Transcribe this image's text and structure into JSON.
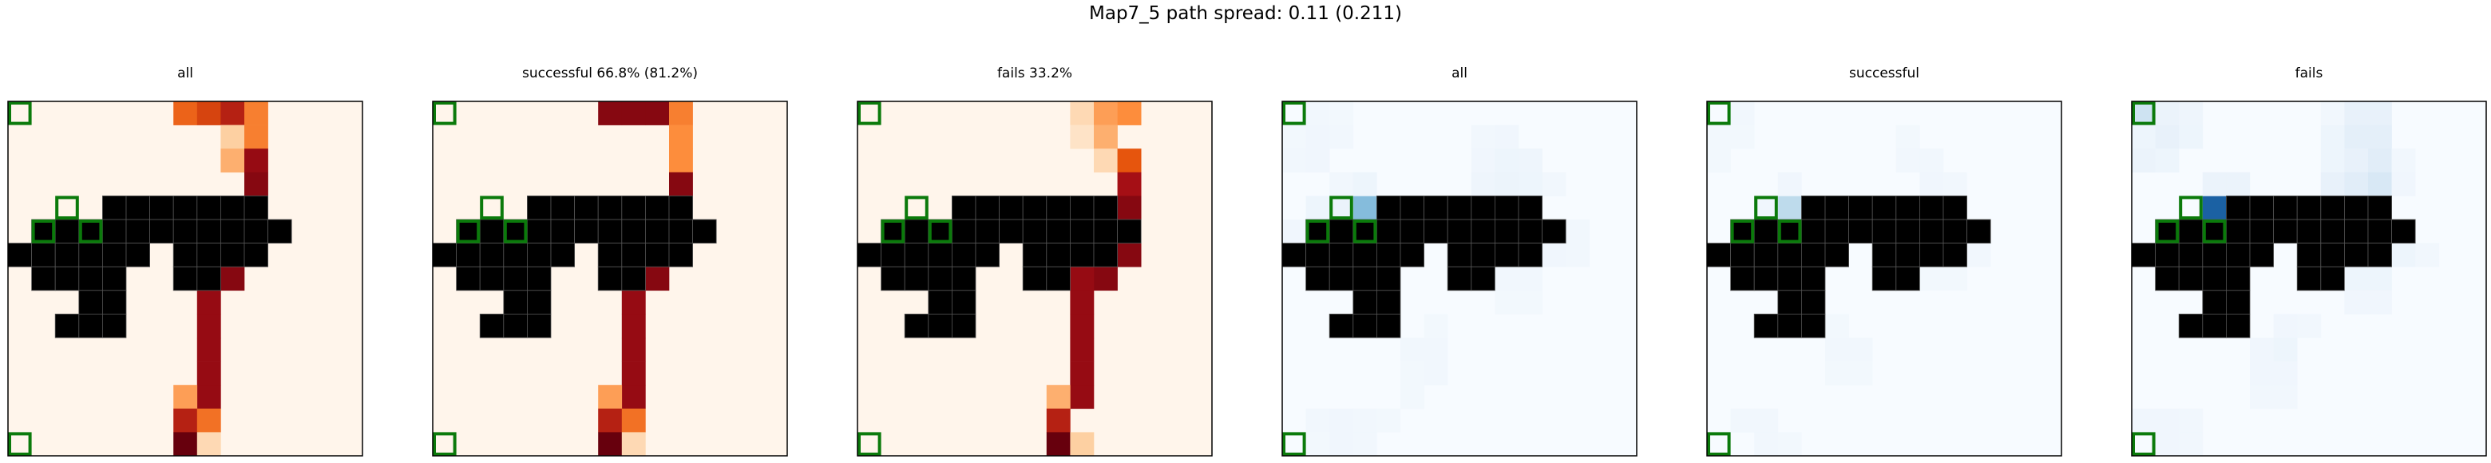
{
  "suptitle": "Map7_5 path spread: 0.11 (0.211)",
  "chart_data": {
    "type": "heatmap",
    "grid_size": [
      15,
      15
    ],
    "obstacles": [
      [
        4,
        4
      ],
      [
        4,
        5
      ],
      [
        4,
        6
      ],
      [
        4,
        7
      ],
      [
        4,
        8
      ],
      [
        4,
        9
      ],
      [
        4,
        10
      ],
      [
        5,
        1
      ],
      [
        5,
        2
      ],
      [
        5,
        3
      ],
      [
        5,
        4
      ],
      [
        5,
        5
      ],
      [
        5,
        6
      ],
      [
        5,
        7
      ],
      [
        5,
        8
      ],
      [
        5,
        9
      ],
      [
        5,
        10
      ],
      [
        5,
        11
      ],
      [
        6,
        0
      ],
      [
        6,
        1
      ],
      [
        6,
        2
      ],
      [
        6,
        3
      ],
      [
        6,
        4
      ],
      [
        6,
        5
      ],
      [
        6,
        7
      ],
      [
        6,
        8
      ],
      [
        6,
        9
      ],
      [
        6,
        10
      ],
      [
        7,
        1
      ],
      [
        7,
        2
      ],
      [
        7,
        3
      ],
      [
        7,
        4
      ],
      [
        7,
        7
      ],
      [
        7,
        8
      ],
      [
        8,
        3
      ],
      [
        8,
        4
      ],
      [
        9,
        2
      ],
      [
        9,
        3
      ],
      [
        9,
        4
      ]
    ],
    "start_markers": [
      [
        0,
        0
      ],
      [
        14,
        0
      ]
    ],
    "goal_markers": [
      [
        4,
        2
      ],
      [
        5,
        1
      ],
      [
        5,
        3
      ]
    ],
    "colors": {
      "paths_cmap": [
        "#fff5eb",
        "#fdd0a2",
        "#fd8d3c",
        "#e6550d",
        "#a50f15",
        "#67000d"
      ],
      "visits_cmap": [
        "#f7fbff",
        "#deebf7",
        "#9ecae1",
        "#6baed6",
        "#2171b5",
        "#08306b"
      ],
      "obstacle": "#000000",
      "marker": "#0b7a0b"
    },
    "panels": [
      {
        "title": "all",
        "cmap": "paths",
        "cells": [
          [
            0,
            7,
            0.55
          ],
          [
            0,
            8,
            0.65
          ],
          [
            0,
            9,
            0.75
          ],
          [
            0,
            10,
            0.45
          ],
          [
            1,
            9,
            0.2
          ],
          [
            1,
            10,
            0.45
          ],
          [
            2,
            9,
            0.3
          ],
          [
            2,
            10,
            0.85
          ],
          [
            3,
            10,
            0.9
          ],
          [
            4,
            10,
            0.9
          ],
          [
            5,
            10,
            0.9
          ],
          [
            5,
            9,
            0.9
          ],
          [
            6,
            9,
            0.9
          ],
          [
            7,
            9,
            0.9
          ],
          [
            7,
            8,
            0.85
          ],
          [
            8,
            8,
            0.85
          ],
          [
            9,
            8,
            0.85
          ],
          [
            10,
            8,
            0.85
          ],
          [
            11,
            8,
            0.85
          ],
          [
            12,
            8,
            0.85
          ],
          [
            12,
            7,
            0.35
          ],
          [
            13,
            7,
            0.75
          ],
          [
            13,
            8,
            0.5
          ],
          [
            14,
            7,
            1.0
          ],
          [
            14,
            8,
            0.15
          ]
        ]
      },
      {
        "title": "successful 66.8% (81.2%)",
        "cmap": "paths",
        "cells": [
          [
            0,
            7,
            0.9
          ],
          [
            0,
            8,
            0.9
          ],
          [
            0,
            9,
            0.9
          ],
          [
            0,
            10,
            0.45
          ],
          [
            1,
            10,
            0.4
          ],
          [
            2,
            10,
            0.4
          ],
          [
            3,
            10,
            0.9
          ],
          [
            4,
            10,
            0.9
          ],
          [
            5,
            10,
            0.9
          ],
          [
            5,
            9,
            0.9
          ],
          [
            6,
            9,
            0.9
          ],
          [
            7,
            9,
            0.9
          ],
          [
            7,
            8,
            0.85
          ],
          [
            8,
            8,
            0.85
          ],
          [
            9,
            8,
            0.85
          ],
          [
            10,
            8,
            0.85
          ],
          [
            11,
            8,
            0.85
          ],
          [
            12,
            8,
            0.85
          ],
          [
            12,
            7,
            0.35
          ],
          [
            13,
            7,
            0.75
          ],
          [
            13,
            8,
            0.5
          ],
          [
            14,
            7,
            1.0
          ],
          [
            14,
            8,
            0.15
          ]
        ]
      },
      {
        "title": "fails 33.2%",
        "cmap": "paths",
        "cells": [
          [
            0,
            9,
            0.15
          ],
          [
            0,
            10,
            0.35
          ],
          [
            0,
            11,
            0.4
          ],
          [
            1,
            9,
            0.1
          ],
          [
            1,
            10,
            0.3
          ],
          [
            2,
            10,
            0.15
          ],
          [
            2,
            11,
            0.6
          ],
          [
            3,
            11,
            0.8
          ],
          [
            4,
            11,
            0.9
          ],
          [
            5,
            11,
            0.9
          ],
          [
            6,
            11,
            0.9
          ],
          [
            6,
            10,
            0.9
          ],
          [
            7,
            10,
            0.9
          ],
          [
            7,
            9,
            0.85
          ],
          [
            8,
            9,
            0.85
          ],
          [
            9,
            9,
            0.85
          ],
          [
            10,
            9,
            0.85
          ],
          [
            11,
            9,
            0.85
          ],
          [
            12,
            9,
            0.85
          ],
          [
            12,
            8,
            0.3
          ],
          [
            13,
            8,
            0.75
          ],
          [
            14,
            8,
            1.0
          ],
          [
            14,
            9,
            0.2
          ]
        ]
      },
      {
        "title": "all",
        "cmap": "visits",
        "cells": [
          [
            0,
            1,
            0.05
          ],
          [
            0,
            2,
            0.04
          ],
          [
            1,
            0,
            0.04
          ],
          [
            1,
            1,
            0.06
          ],
          [
            1,
            2,
            0.05
          ],
          [
            2,
            0,
            0.05
          ],
          [
            2,
            1,
            0.06
          ],
          [
            1,
            8,
            0.05
          ],
          [
            1,
            9,
            0.06
          ],
          [
            2,
            8,
            0.06
          ],
          [
            2,
            9,
            0.08
          ],
          [
            2,
            10,
            0.07
          ],
          [
            3,
            8,
            0.07
          ],
          [
            3,
            9,
            0.09
          ],
          [
            3,
            10,
            0.08
          ],
          [
            3,
            11,
            0.05
          ],
          [
            4,
            3,
            0.5
          ],
          [
            4,
            3,
            0.5
          ],
          [
            3,
            2,
            0.05
          ],
          [
            3,
            3,
            0.08
          ],
          [
            4,
            1,
            0.08
          ],
          [
            4,
            2,
            0.1
          ],
          [
            5,
            0,
            0.06
          ],
          [
            6,
            0,
            0.06
          ],
          [
            4,
            5,
            0.15
          ],
          [
            4,
            6,
            0.15
          ],
          [
            4,
            7,
            0.15
          ],
          [
            4,
            8,
            0.12
          ],
          [
            4,
            9,
            0.1
          ],
          [
            5,
            3,
            0.65
          ],
          [
            6,
            2,
            0.35
          ],
          [
            6,
            3,
            0.95
          ],
          [
            7,
            2,
            0.1
          ],
          [
            7,
            3,
            0.1
          ],
          [
            5,
            12,
            0.05
          ],
          [
            6,
            11,
            0.06
          ],
          [
            6,
            12,
            0.05
          ],
          [
            7,
            9,
            0.05
          ],
          [
            7,
            10,
            0.05
          ],
          [
            8,
            9,
            0.04
          ],
          [
            8,
            10,
            0.04
          ],
          [
            9,
            6,
            0.04
          ],
          [
            10,
            5,
            0.05
          ],
          [
            10,
            6,
            0.05
          ],
          [
            11,
            5,
            0.04
          ],
          [
            11,
            6,
            0.05
          ],
          [
            12,
            5,
            0.04
          ],
          [
            13,
            4,
            0.04
          ],
          [
            13,
            1,
            0.05
          ],
          [
            13,
            2,
            0.06
          ],
          [
            13,
            3,
            0.05
          ],
          [
            14,
            1,
            0.04
          ],
          [
            14,
            2,
            0.06
          ],
          [
            14,
            3,
            0.05
          ]
        ]
      },
      {
        "title": "successful",
        "cmap": "visits",
        "cells": [
          [
            0,
            1,
            0.05
          ],
          [
            1,
            0,
            0.04
          ],
          [
            1,
            1,
            0.04
          ],
          [
            2,
            0,
            0.04
          ],
          [
            1,
            8,
            0.04
          ],
          [
            2,
            8,
            0.05
          ],
          [
            2,
            9,
            0.05
          ],
          [
            3,
            9,
            0.06
          ],
          [
            3,
            10,
            0.05
          ],
          [
            4,
            3,
            0.3
          ],
          [
            3,
            3,
            0.06
          ],
          [
            4,
            2,
            0.06
          ],
          [
            5,
            3,
            0.55
          ],
          [
            6,
            2,
            0.45
          ],
          [
            6,
            3,
            1.0
          ],
          [
            7,
            2,
            0.08
          ],
          [
            4,
            7,
            0.05
          ],
          [
            4,
            8,
            0.05
          ],
          [
            6,
            11,
            0.05
          ],
          [
            7,
            9,
            0.04
          ],
          [
            7,
            10,
            0.04
          ],
          [
            9,
            5,
            0.04
          ],
          [
            10,
            5,
            0.05
          ],
          [
            10,
            6,
            0.05
          ],
          [
            11,
            5,
            0.04
          ],
          [
            11,
            6,
            0.04
          ],
          [
            13,
            1,
            0.05
          ],
          [
            13,
            2,
            0.05
          ],
          [
            14,
            2,
            0.05
          ],
          [
            14,
            3,
            0.04
          ]
        ]
      },
      {
        "title": "fails",
        "cmap": "visits",
        "cells": [
          [
            0,
            0,
            0.25
          ],
          [
            0,
            1,
            0.1
          ],
          [
            0,
            2,
            0.07
          ],
          [
            1,
            0,
            0.08
          ],
          [
            1,
            1,
            0.12
          ],
          [
            1,
            2,
            0.08
          ],
          [
            2,
            0,
            0.1
          ],
          [
            2,
            1,
            0.08
          ],
          [
            0,
            8,
            0.05
          ],
          [
            0,
            9,
            0.12
          ],
          [
            0,
            10,
            0.12
          ],
          [
            1,
            8,
            0.08
          ],
          [
            1,
            9,
            0.15
          ],
          [
            1,
            10,
            0.15
          ],
          [
            2,
            8,
            0.08
          ],
          [
            2,
            9,
            0.12
          ],
          [
            2,
            10,
            0.18
          ],
          [
            3,
            8,
            0.12
          ],
          [
            3,
            9,
            0.18
          ],
          [
            3,
            10,
            0.22
          ],
          [
            2,
            11,
            0.05
          ],
          [
            3,
            11,
            0.06
          ],
          [
            4,
            3,
            0.85
          ],
          [
            4,
            4,
            0.8
          ],
          [
            4,
            5,
            0.8
          ],
          [
            4,
            6,
            0.8
          ],
          [
            4,
            7,
            0.7
          ],
          [
            4,
            8,
            0.55
          ],
          [
            4,
            9,
            0.3
          ],
          [
            4,
            10,
            0.2
          ],
          [
            3,
            3,
            0.1
          ],
          [
            3,
            4,
            0.1
          ],
          [
            5,
            1,
            0.15
          ],
          [
            5,
            2,
            0.4
          ],
          [
            6,
            1,
            0.2
          ],
          [
            6,
            2,
            0.35
          ],
          [
            7,
            1,
            0.1
          ],
          [
            7,
            2,
            0.1
          ],
          [
            5,
            11,
            0.06
          ],
          [
            6,
            11,
            0.08
          ],
          [
            6,
            12,
            0.05
          ],
          [
            7,
            9,
            0.08
          ],
          [
            7,
            10,
            0.08
          ],
          [
            8,
            9,
            0.06
          ],
          [
            8,
            10,
            0.06
          ],
          [
            9,
            6,
            0.06
          ],
          [
            9,
            7,
            0.05
          ],
          [
            10,
            5,
            0.06
          ],
          [
            10,
            6,
            0.08
          ],
          [
            11,
            5,
            0.06
          ],
          [
            11,
            6,
            0.06
          ],
          [
            12,
            5,
            0.05
          ],
          [
            12,
            6,
            0.05
          ],
          [
            13,
            0,
            0.06
          ],
          [
            13,
            1,
            0.06
          ],
          [
            13,
            2,
            0.05
          ],
          [
            14,
            1,
            0.06
          ],
          [
            14,
            2,
            0.05
          ]
        ]
      }
    ]
  }
}
